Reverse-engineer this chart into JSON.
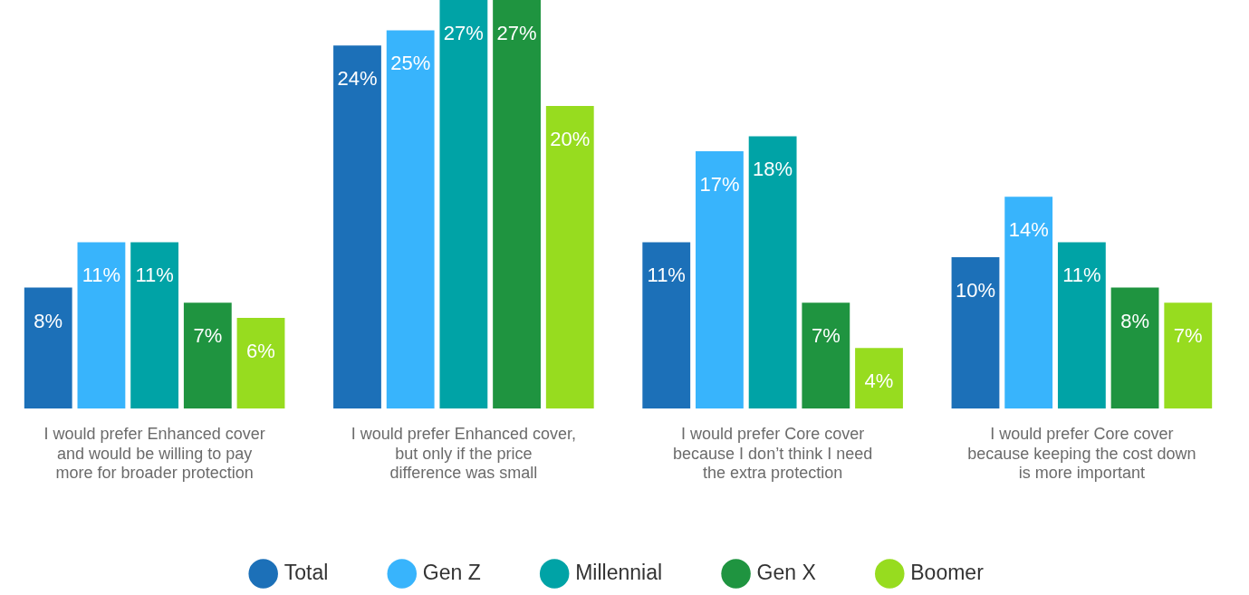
{
  "chart_data": {
    "type": "bar",
    "categories": [
      "I would prefer Enhanced cover and would be willing to pay more for broader protection",
      "I would prefer Enhanced cover, but only if the price difference was small",
      "I would prefer Core cover because I don’t think I need the extra protection",
      "I would prefer Core cover because keeping the cost down is more important"
    ],
    "series": [
      {
        "name": "Total",
        "color": "#1c70b8",
        "values": [
          8,
          24,
          11,
          10
        ],
        "value_labels": [
          "8%",
          "24%",
          "11%",
          "10%"
        ]
      },
      {
        "name": "Gen Z",
        "color": "#38b4fc",
        "values": [
          11,
          25,
          17,
          14
        ],
        "value_labels": [
          "11%",
          "25%",
          "17%",
          "14%"
        ]
      },
      {
        "name": "Millennial",
        "color": "#00a3a6",
        "values": [
          11,
          27,
          18,
          11
        ],
        "value_labels": [
          "11%",
          "27%",
          "18%",
          "11%"
        ]
      },
      {
        "name": "Gen X",
        "color": "#1f9440",
        "values": [
          7,
          27,
          7,
          8
        ],
        "value_labels": [
          "7%",
          "27%",
          "7%",
          "8%"
        ]
      },
      {
        "name": "Boomer",
        "color": "#97dc1f",
        "values": [
          6,
          20,
          4,
          7
        ],
        "value_labels": [
          "6%",
          "20%",
          "4%",
          "7%"
        ]
      }
    ],
    "ylim": [
      0,
      27
    ],
    "grid": false,
    "legend": "bottom"
  }
}
